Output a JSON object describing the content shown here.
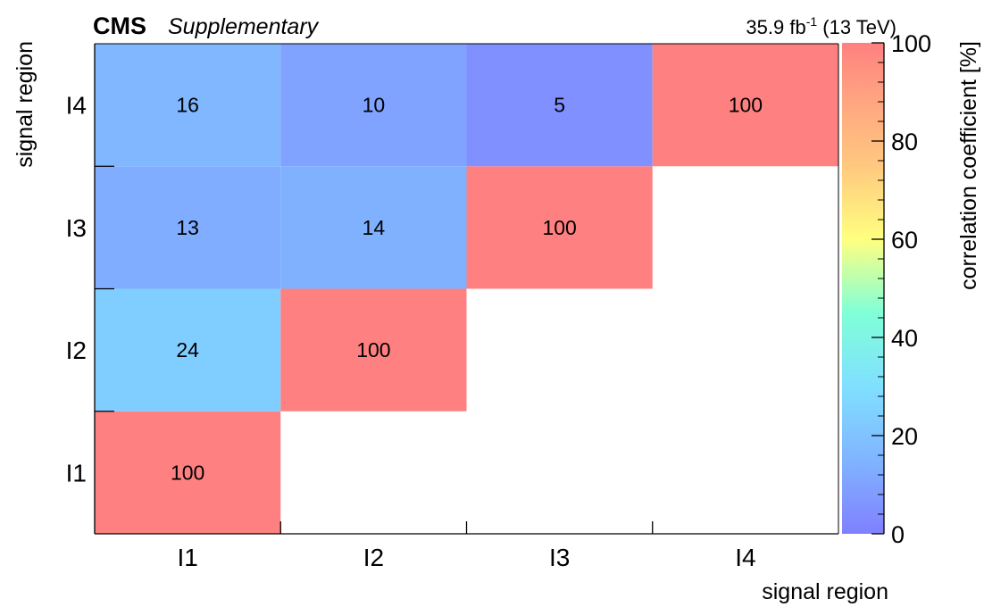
{
  "header": {
    "experiment": "CMS",
    "tag": "Supplementary",
    "lumi_value": "35.9 fb",
    "lumi_exponent": "-1",
    "energy": " (13 TeV)"
  },
  "chart_data": {
    "type": "heatmap",
    "x_categories": [
      "I1",
      "I2",
      "I3",
      "I4"
    ],
    "y_categories": [
      "I1",
      "I2",
      "I3",
      "I4"
    ],
    "cells": [
      {
        "x": "I1",
        "y": "I1",
        "value": 100
      },
      {
        "x": "I1",
        "y": "I2",
        "value": 24
      },
      {
        "x": "I2",
        "y": "I2",
        "value": 100
      },
      {
        "x": "I1",
        "y": "I3",
        "value": 13
      },
      {
        "x": "I2",
        "y": "I3",
        "value": 14
      },
      {
        "x": "I3",
        "y": "I3",
        "value": 100
      },
      {
        "x": "I1",
        "y": "I4",
        "value": 16
      },
      {
        "x": "I2",
        "y": "I4",
        "value": 10
      },
      {
        "x": "I3",
        "y": "I4",
        "value": 5
      },
      {
        "x": "I4",
        "y": "I4",
        "value": 100
      }
    ],
    "xlabel": "signal region",
    "ylabel": "signal region",
    "colorbar": {
      "label": "correlation coefficient [%]",
      "range": [
        0,
        100
      ],
      "ticks": [
        0,
        20,
        40,
        60,
        80,
        100
      ]
    },
    "colors": {
      "c0": "#8080ff",
      "c15": "#80b4ff",
      "c30": "#80e0ff",
      "c45": "#80ffd8",
      "c60": "#ffff80",
      "c75": "#ffc880",
      "c90": "#ffa080",
      "c100": "#ff8080"
    }
  }
}
